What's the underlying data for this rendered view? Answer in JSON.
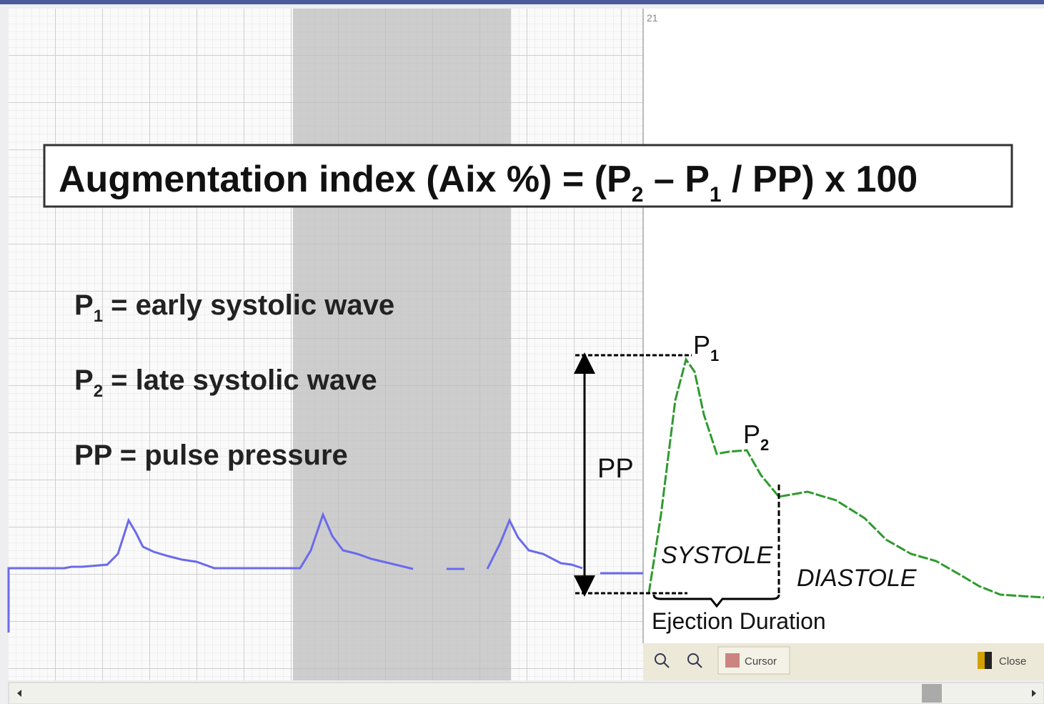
{
  "panel_number": "21",
  "formula": {
    "lead": "Augmentation index (Aix %) = (P",
    "sub_a": "2",
    "mid": " – P",
    "sub_b": "1",
    "tail": " / PP) x 100"
  },
  "definitions": [
    {
      "symbol": "P",
      "sub": "1",
      "text": " = early systolic wave"
    },
    {
      "symbol": "P",
      "sub": "2",
      "text": " = late systolic wave"
    },
    {
      "symbol": "PP",
      "text": " = pulse pressure"
    }
  ],
  "peak_labels": [
    {
      "symbol": "P",
      "sub": "1"
    },
    {
      "symbol": "P",
      "sub": "2"
    }
  ],
  "pp_label": "PP",
  "phases": {
    "systole": "SYSTOLE",
    "diastole": "DIASTOLE"
  },
  "ejection_label": "Ejection Duration",
  "toolbar": {
    "cursor": "Cursor",
    "close": "Close"
  }
}
